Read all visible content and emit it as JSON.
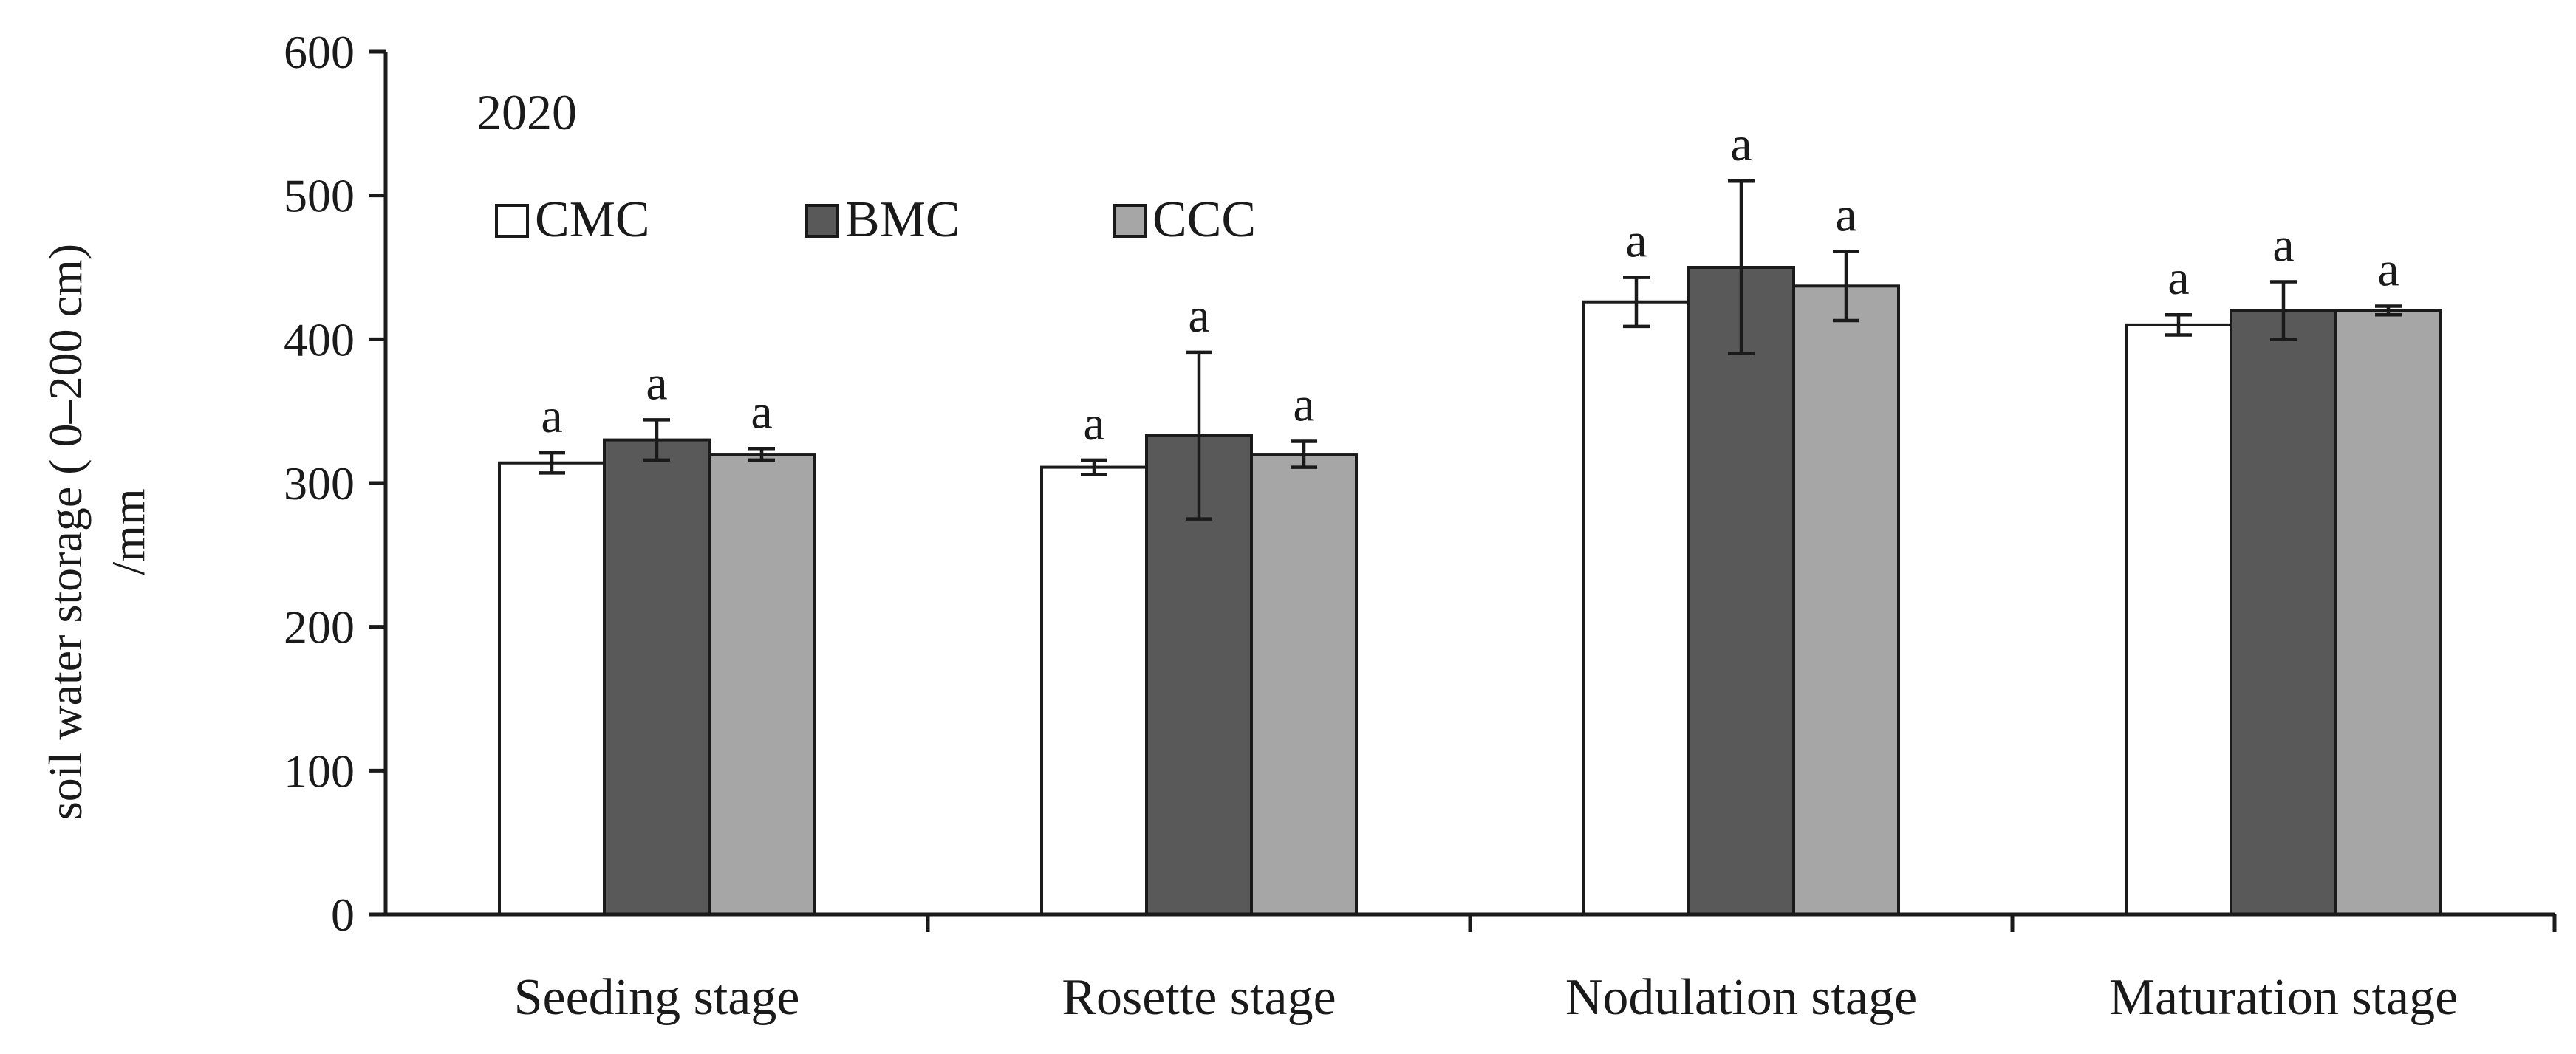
{
  "chart_data": {
    "type": "bar",
    "title": "",
    "annotation": "2020",
    "xlabel": "",
    "ylabel_line1": "soil water storage ( 0–200 cm)",
    "ylabel_line2": "/mm",
    "ylim": [
      0,
      600
    ],
    "yticks": [
      "0",
      "100",
      "200",
      "300",
      "400",
      "500",
      "600"
    ],
    "grid": false,
    "legend_position": "top-left",
    "categories": [
      "Seeding stage",
      "Rosette stage",
      "Nodulation stage",
      "Maturation stage"
    ],
    "series": [
      {
        "name": "CMC",
        "color": "#ffffff",
        "values": [
          314,
          311,
          426,
          410
        ],
        "errors": [
          7,
          5,
          17,
          7
        ],
        "significance": [
          "a",
          "a",
          "a",
          "a"
        ]
      },
      {
        "name": "BMC",
        "color": "#595959",
        "values": [
          330,
          333,
          450,
          420
        ],
        "errors": [
          14,
          58,
          60,
          20
        ],
        "significance": [
          "a",
          "a",
          "a",
          "a"
        ]
      },
      {
        "name": "CCC",
        "color": "#a6a6a6",
        "values": [
          320,
          320,
          437,
          420
        ],
        "errors": [
          4,
          9,
          24,
          3
        ],
        "significance": [
          "a",
          "a",
          "a",
          "a"
        ]
      }
    ]
  }
}
